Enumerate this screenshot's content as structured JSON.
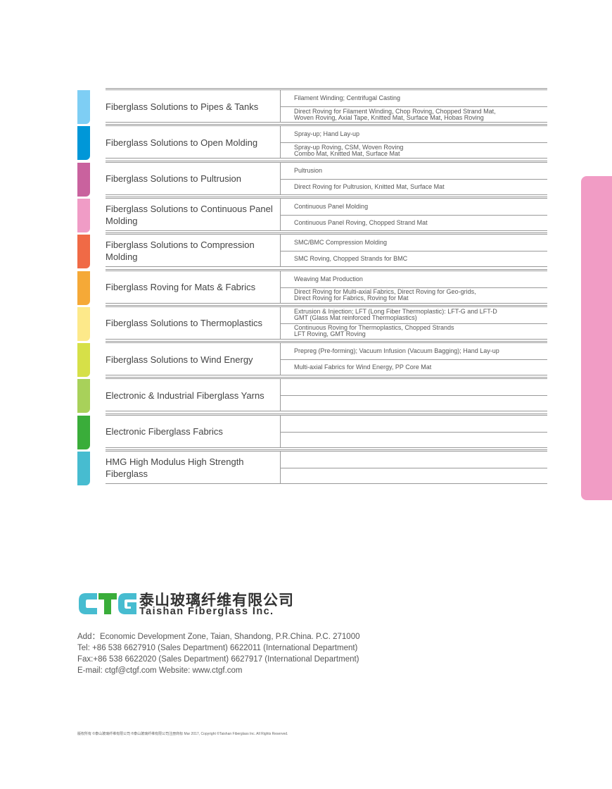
{
  "rows": [
    {
      "label": "Fiberglass Solutions to Pipes & Tanks",
      "process": "Filament Winding; Centrifugal Casting",
      "products": "Direct Roving for Filament Winding, Chop Roving, Chopped Strand Mat,\nWoven Roving, Axial Tape, Knitted Mat, Surface Mat, Hobas Roving",
      "color": "#7ecef4"
    },
    {
      "label": "Fiberglass Solutions to Open Molding",
      "process": "Spray-up; Hand Lay-up",
      "products": "Spray-up Roving, CSM, Woven Roving\nCombo Mat, Knitted Mat, Surface Mat",
      "color": "#0097d8"
    },
    {
      "label": "Fiberglass Solutions to Pultrusion",
      "process": "Pultrusion",
      "products": "Direct Roving for Pultrusion, Knitted Mat, Surface Mat",
      "color": "#c9629e"
    },
    {
      "label": "Fiberglass Solutions to Continuous Panel Molding",
      "process": "Continuous Panel Molding",
      "products": "Continuous Panel Roving, Chopped Strand Mat",
      "color": "#f09cc6"
    },
    {
      "label": "Fiberglass Solutions to Compression Molding",
      "process": "SMC/BMC Compression Molding",
      "products": "SMC Roving, Chopped Strands for BMC",
      "color": "#f06a46"
    },
    {
      "label": "Fiberglass Roving for Mats & Fabrics",
      "process": "Weaving  Mat Production",
      "products": "Direct Roving for Multi-axial Fabrics, Direct Roving for Geo-grids,\nDirect Roving for Fabrics, Roving for Mat",
      "color": "#f5a937"
    },
    {
      "label": "Fiberglass Solutions to Thermoplastics",
      "process": "Extrusion & Injection; LFT (Long Fiber Thermoplastic): LFT-G and LFT-D\nGMT (Glass Mat reinforced Thermoplastics)",
      "products": "Continuous Roving for Thermoplastics, Chopped Strands\nLFT Roving, GMT Roving",
      "color": "#fde98a"
    },
    {
      "label": "Fiberglass Solutions to Wind Energy",
      "process": "Prepreg (Pre-forming); Vacuum Infusion (Vacuum Bagging); Hand Lay-up",
      "products": "Multi-axial Fabrics for Wind Energy, PP Core Mat",
      "color": "#d6e048"
    },
    {
      "label": "Electronic & Industrial Fiberglass Yarns",
      "process": "",
      "products": "",
      "color": "#a8d15a"
    },
    {
      "label": "Electronic Fiberglass Fabrics",
      "process": "",
      "products": "",
      "color": "#3aad3a"
    },
    {
      "label": "HMG High Modulus High Strength Fiberglass",
      "process": "",
      "products": "",
      "color": "#47bcd0"
    }
  ],
  "side_tab_color": "#f19cc5",
  "logo": {
    "mark": "CTG",
    "cn_name": "泰山玻璃纤维有限公司",
    "en_name": "Taishan Fiberglass Inc.",
    "colors": {
      "c": "#47bcd0",
      "t": "#3aad3a",
      "g": "#47bcd0"
    }
  },
  "contact": {
    "address": "Add：Economic Development Zone, Taian, Shandong, P.R.China. P.C. 271000",
    "tel": "Tel: +86 538 6627910 (Sales Department)    6622011 (International Department)",
    "fax": "Fax:+86 538 6622020 (Sales Department)    6627917 (International Department)",
    "email_web": "E-mail: ctgf@ctgf.com   Website: www.ctgf.com"
  },
  "footer": "版权所有 ©泰山玻璃纤维有限公司 ®泰山玻璃纤维有限公司注册商标   Mar 2017, Copyright ©Taishan Fiberglass Inc. All Rights Reserved."
}
